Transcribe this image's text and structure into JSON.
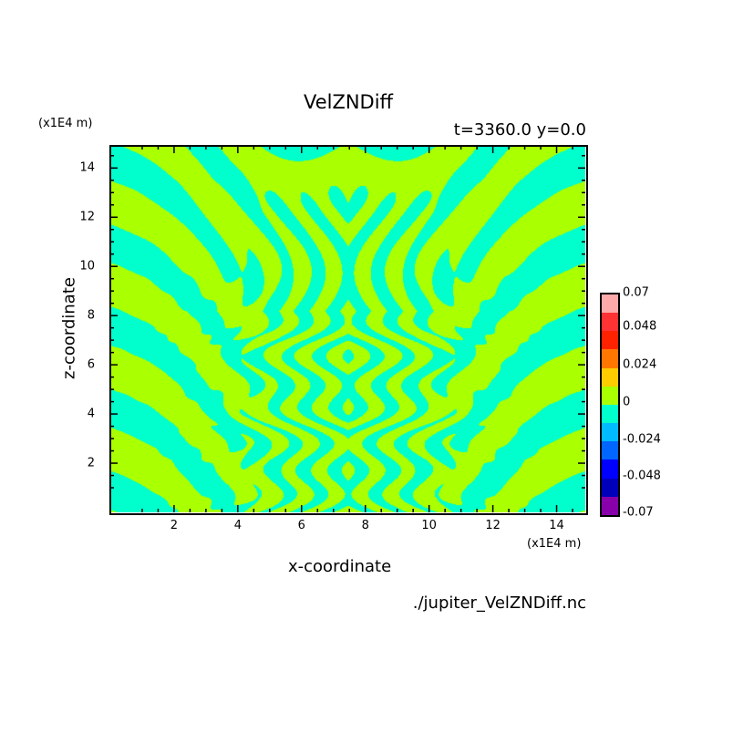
{
  "chart_data": {
    "type": "heatmap",
    "title": "VelZNDiff",
    "subtitle": "t=3360.0 y=0.0",
    "xlabel": "x-coordinate",
    "ylabel": "z-coordinate",
    "x_unit": "(x1E4 m)",
    "y_unit": "(x1E4 m)",
    "xlim": [
      0,
      14.9
    ],
    "ylim": [
      0,
      14.9
    ],
    "x_ticks": [
      "2",
      "4",
      "6",
      "8",
      "10",
      "12",
      "14"
    ],
    "y_ticks": [
      "2",
      "4",
      "6",
      "8",
      "10",
      "12",
      "14"
    ],
    "colorbar": {
      "labels": [
        "-0.07",
        "-0.048",
        "-0.024",
        "0",
        "0.024",
        "0.048",
        "0.07"
      ],
      "colors": [
        "#8800aa",
        "#0000bb",
        "#0000ff",
        "#0066ff",
        "#00bbff",
        "#00ffcc",
        "#aaff00",
        "#ffcc00",
        "#ff7700",
        "#ff2200",
        "#ff3333",
        "#ffaaaa"
      ]
    },
    "field_description_colors": {
      "positive_small": "#aaff00",
      "negative_small": "#00ffcc"
    },
    "file": "./jupiter_VelZNDiff.nc"
  }
}
